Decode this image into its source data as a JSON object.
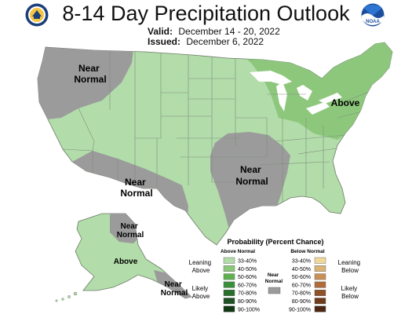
{
  "title": "8-14 Day Precipitation Outlook",
  "valid": {
    "label": "Valid:",
    "value": "December 14 - 20, 2022"
  },
  "issued": {
    "label": "Issued:",
    "value": "December 6, 2022"
  },
  "logos": {
    "left": "doc-seal-icon",
    "right": "noaa-logo-icon",
    "right_text": "NOAA"
  },
  "colors": {
    "above_33_40": "#b2dca9",
    "above_40_50": "#8dc77c",
    "near_normal": "#9b9b9b",
    "state_lines": "#8a9a86",
    "background": "#ffffff"
  },
  "regions": [
    {
      "label_lines": [
        "Near",
        "Normal"
      ],
      "category": "near_normal"
    },
    {
      "label_lines": [
        "Near",
        "Normal"
      ],
      "category": "near_normal"
    },
    {
      "label_lines": [
        "Near",
        "Normal"
      ],
      "category": "near_normal"
    },
    {
      "label_lines": [
        "Above"
      ],
      "category": "above"
    },
    {
      "label_lines": [
        "Near",
        "Normal"
      ],
      "category": "near_normal"
    },
    {
      "label_lines": [
        "Above"
      ],
      "category": "above"
    },
    {
      "label_lines": [
        "Near",
        "Normal"
      ],
      "category": "near_normal"
    }
  ],
  "legend": {
    "title": "Probability (Percent Chance)",
    "above_head": "Above Normal",
    "below_head": "Below Normal",
    "near_head": [
      "Near",
      "Normal"
    ],
    "leaning_above": [
      "Leaning",
      "Above"
    ],
    "likely_above": [
      "Likely",
      "Above"
    ],
    "leaning_below": [
      "Leaning",
      "Below"
    ],
    "likely_below": [
      "Likely",
      "Below"
    ],
    "above_rows": [
      {
        "label": "33-40%",
        "color": "#b2dca9"
      },
      {
        "label": "40-50%",
        "color": "#8dc77c"
      },
      {
        "label": "50-60%",
        "color": "#5fb14f"
      },
      {
        "label": "60-70%",
        "color": "#3a8f3a"
      },
      {
        "label": "70-80%",
        "color": "#2a6e2e"
      },
      {
        "label": "80-90%",
        "color": "#1e5224"
      },
      {
        "label": "90-100%",
        "color": "#123816"
      }
    ],
    "below_rows": [
      {
        "label": "33-40%",
        "color": "#f1d79c"
      },
      {
        "label": "40-50%",
        "color": "#d9b377"
      },
      {
        "label": "50-60%",
        "color": "#c98f58"
      },
      {
        "label": "60-70%",
        "color": "#b06d3b"
      },
      {
        "label": "70-80%",
        "color": "#8f5228"
      },
      {
        "label": "80-90%",
        "color": "#6e3b1b"
      },
      {
        "label": "90-100%",
        "color": "#4d2711"
      }
    ]
  }
}
